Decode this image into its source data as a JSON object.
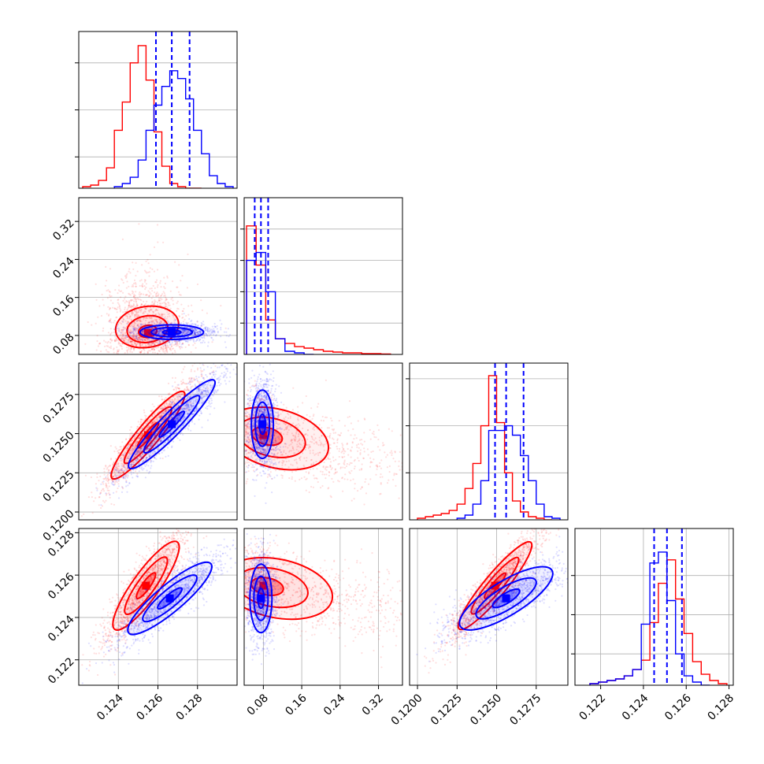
{
  "figure": {
    "type": "corner_plot",
    "colors": {
      "series_red": "#ff0000",
      "series_blue": "#0000ff",
      "grid": "#b0b0b0",
      "frame": "#000000"
    }
  },
  "chart_data": [
    {
      "type": "histogram",
      "panel": "p00",
      "xlim": [
        0.122,
        0.13
      ],
      "ylim": [
        0,
        1
      ],
      "ytick_values": [
        0.2,
        0.5,
        0.8
      ],
      "series": [
        {
          "color": "#ff0000",
          "bin_edges": [
            0.1222,
            0.1226,
            0.123,
            0.1234,
            0.1238,
            0.1242,
            0.1246,
            0.125,
            0.1254,
            0.1258,
            0.1262,
            0.1266,
            0.127,
            0.1274,
            0.1278,
            0.1282
          ],
          "counts": [
            0.01,
            0.02,
            0.05,
            0.13,
            0.37,
            0.55,
            0.8,
            0.91,
            0.69,
            0.36,
            0.14,
            0.03,
            0.01,
            0.0,
            0.0
          ]
        },
        {
          "color": "#0000ff",
          "bin_edges": [
            0.1238,
            0.1242,
            0.1246,
            0.125,
            0.1254,
            0.1258,
            0.1262,
            0.1266,
            0.127,
            0.1274,
            0.1278,
            0.1282,
            0.1286,
            0.129,
            0.1294,
            0.1298
          ],
          "counts": [
            0.01,
            0.03,
            0.07,
            0.18,
            0.37,
            0.53,
            0.65,
            0.75,
            0.7,
            0.57,
            0.37,
            0.22,
            0.08,
            0.03,
            0.01
          ]
        }
      ],
      "quantile_lines": [
        0.1259,
        0.1267,
        0.1276
      ]
    },
    {
      "type": "scatter_contour",
      "panel": "p10",
      "xlim": [
        0.122,
        0.13
      ],
      "ylim": [
        0.04,
        0.37
      ],
      "yticks": [
        0.08,
        0.16,
        0.24,
        0.32
      ],
      "ytick_labels": [
        "0.08",
        "0.16",
        "0.24",
        "0.32"
      ],
      "series": [
        {
          "color": "#ff0000",
          "center": [
            0.1255,
            0.085
          ]
        },
        {
          "color": "#0000ff",
          "center": [
            0.1267,
            0.087
          ]
        }
      ]
    },
    {
      "type": "histogram",
      "panel": "p11",
      "xlim": [
        0.04,
        0.37
      ],
      "ylim": [
        0,
        1
      ],
      "ytick_values": [
        0.2,
        0.4,
        0.6,
        0.8
      ],
      "series": [
        {
          "color": "#ff0000",
          "bin_edges": [
            0.045,
            0.065,
            0.085,
            0.105,
            0.125,
            0.145,
            0.165,
            0.185,
            0.205,
            0.225,
            0.245,
            0.265,
            0.285,
            0.305,
            0.325,
            0.345
          ],
          "counts": [
            0.82,
            0.57,
            0.22,
            0.1,
            0.07,
            0.05,
            0.04,
            0.03,
            0.02,
            0.015,
            0.01,
            0.01,
            0.005,
            0.005,
            0.003
          ]
        },
        {
          "color": "#0000ff",
          "bin_edges": [
            0.045,
            0.065,
            0.085,
            0.105,
            0.125,
            0.145,
            0.165,
            0.185
          ],
          "counts": [
            0.6,
            0.65,
            0.4,
            0.1,
            0.02,
            0.01,
            0.0
          ]
        }
      ],
      "quantile_lines": [
        0.062,
        0.075,
        0.09
      ]
    },
    {
      "type": "scatter_contour",
      "panel": "p20",
      "xlim": [
        0.122,
        0.13
      ],
      "ylim": [
        0.1195,
        0.1295
      ],
      "yticks": [
        0.12,
        0.1225,
        0.125,
        0.1275
      ],
      "ytick_labels": [
        "0.1200",
        "0.1225",
        "0.1250",
        "0.1275"
      ],
      "series": [
        {
          "color": "#ff0000",
          "center": [
            0.1255,
            0.1249
          ]
        },
        {
          "color": "#0000ff",
          "center": [
            0.1267,
            0.1256
          ]
        }
      ]
    },
    {
      "type": "scatter_contour",
      "panel": "p21",
      "xlim": [
        0.04,
        0.37
      ],
      "ylim": [
        0.1195,
        0.1295
      ],
      "series": [
        {
          "color": "#ff0000",
          "center": [
            0.08,
            0.1249
          ]
        },
        {
          "color": "#0000ff",
          "center": [
            0.078,
            0.1256
          ]
        }
      ]
    },
    {
      "type": "histogram",
      "panel": "p22",
      "xlim": [
        0.1195,
        0.1295
      ],
      "ylim": [
        0,
        1
      ],
      "ytick_values": [
        0.3,
        0.6,
        0.9
      ],
      "series": [
        {
          "color": "#ff0000",
          "bin_edges": [
            0.12,
            0.1205,
            0.121,
            0.1215,
            0.122,
            0.1225,
            0.123,
            0.1235,
            0.124,
            0.1245,
            0.125,
            0.1255,
            0.126,
            0.1265,
            0.127,
            0.1275,
            0.128,
            0.1285
          ],
          "counts": [
            0.01,
            0.02,
            0.03,
            0.04,
            0.06,
            0.1,
            0.2,
            0.36,
            0.6,
            0.92,
            0.62,
            0.3,
            0.12,
            0.05,
            0.02,
            0.01,
            0.0
          ]
        },
        {
          "color": "#0000ff",
          "bin_edges": [
            0.1225,
            0.123,
            0.1235,
            0.124,
            0.1245,
            0.125,
            0.1255,
            0.126,
            0.1265,
            0.127,
            0.1275,
            0.128,
            0.1285,
            0.129
          ],
          "counts": [
            0.01,
            0.03,
            0.1,
            0.25,
            0.57,
            0.57,
            0.6,
            0.54,
            0.41,
            0.25,
            0.1,
            0.02,
            0.01
          ]
        }
      ],
      "quantile_lines": [
        0.1249,
        0.1256,
        0.1267
      ]
    },
    {
      "type": "scatter_contour",
      "panel": "p30",
      "xlim": [
        0.122,
        0.13
      ],
      "ylim": [
        0.1208,
        0.1282
      ],
      "yticks": [
        0.122,
        0.124,
        0.126,
        0.128
      ],
      "ytick_labels": [
        "0.122",
        "0.124",
        "0.126",
        "0.128"
      ],
      "xticks": [
        0.124,
        0.126,
        0.128
      ],
      "xtick_labels": [
        "0.124",
        "0.126",
        "0.128"
      ],
      "series": [
        {
          "color": "#ff0000",
          "center": [
            0.1254,
            0.1255
          ]
        },
        {
          "color": "#0000ff",
          "center": [
            0.1266,
            0.1249
          ]
        }
      ]
    },
    {
      "type": "scatter_contour",
      "panel": "p31",
      "xlim": [
        0.04,
        0.37
      ],
      "ylim": [
        0.1208,
        0.1282
      ],
      "xticks": [
        0.08,
        0.16,
        0.24,
        0.32
      ],
      "xtick_labels": [
        "0.08",
        "0.16",
        "0.24",
        "0.32"
      ],
      "series": [
        {
          "color": "#ff0000",
          "center": [
            0.08,
            0.1255
          ]
        },
        {
          "color": "#0000ff",
          "center": [
            0.075,
            0.1249
          ]
        }
      ]
    },
    {
      "type": "scatter_contour",
      "panel": "p32",
      "xlim": [
        0.1195,
        0.1295
      ],
      "ylim": [
        0.1208,
        0.1282
      ],
      "xticks": [
        0.12,
        0.1225,
        0.125,
        0.1275
      ],
      "xtick_labels": [
        "0.1200",
        "0.1225",
        "0.1250",
        "0.1275"
      ],
      "series": [
        {
          "color": "#ff0000",
          "center": [
            0.1249,
            0.1255
          ]
        },
        {
          "color": "#0000ff",
          "center": [
            0.1256,
            0.1249
          ]
        }
      ]
    },
    {
      "type": "histogram",
      "panel": "p33",
      "xlim": [
        0.1208,
        0.1282
      ],
      "ylim": [
        0,
        1
      ],
      "ytick_values": [
        0.2,
        0.45,
        0.7
      ],
      "xticks": [
        0.122,
        0.124,
        0.126,
        0.128
      ],
      "xtick_labels": [
        "0.122",
        "0.124",
        "0.126",
        "0.128"
      ],
      "series": [
        {
          "color": "#ff0000",
          "bin_edges": [
            0.1215,
            0.1219,
            0.1223,
            0.1227,
            0.1231,
            0.1235,
            0.1239,
            0.1243,
            0.1247,
            0.1251,
            0.1255,
            0.1259,
            0.1263,
            0.1267,
            0.1271,
            0.1275,
            0.1279
          ],
          "counts": [
            0.01,
            0.02,
            0.03,
            0.04,
            0.06,
            0.1,
            0.16,
            0.4,
            0.65,
            0.8,
            0.55,
            0.33,
            0.15,
            0.07,
            0.03,
            0.01
          ]
        },
        {
          "color": "#0000ff",
          "bin_edges": [
            0.1215,
            0.1219,
            0.1223,
            0.1227,
            0.1231,
            0.1235,
            0.1239,
            0.1243,
            0.1247,
            0.1251,
            0.1255,
            0.1259,
            0.1263,
            0.1267,
            0.1271
          ],
          "counts": [
            0.01,
            0.02,
            0.03,
            0.04,
            0.06,
            0.1,
            0.39,
            0.78,
            0.85,
            0.54,
            0.2,
            0.06,
            0.02,
            0.0
          ]
        }
      ],
      "quantile_lines": [
        0.1245,
        0.1251,
        0.1258
      ]
    }
  ]
}
